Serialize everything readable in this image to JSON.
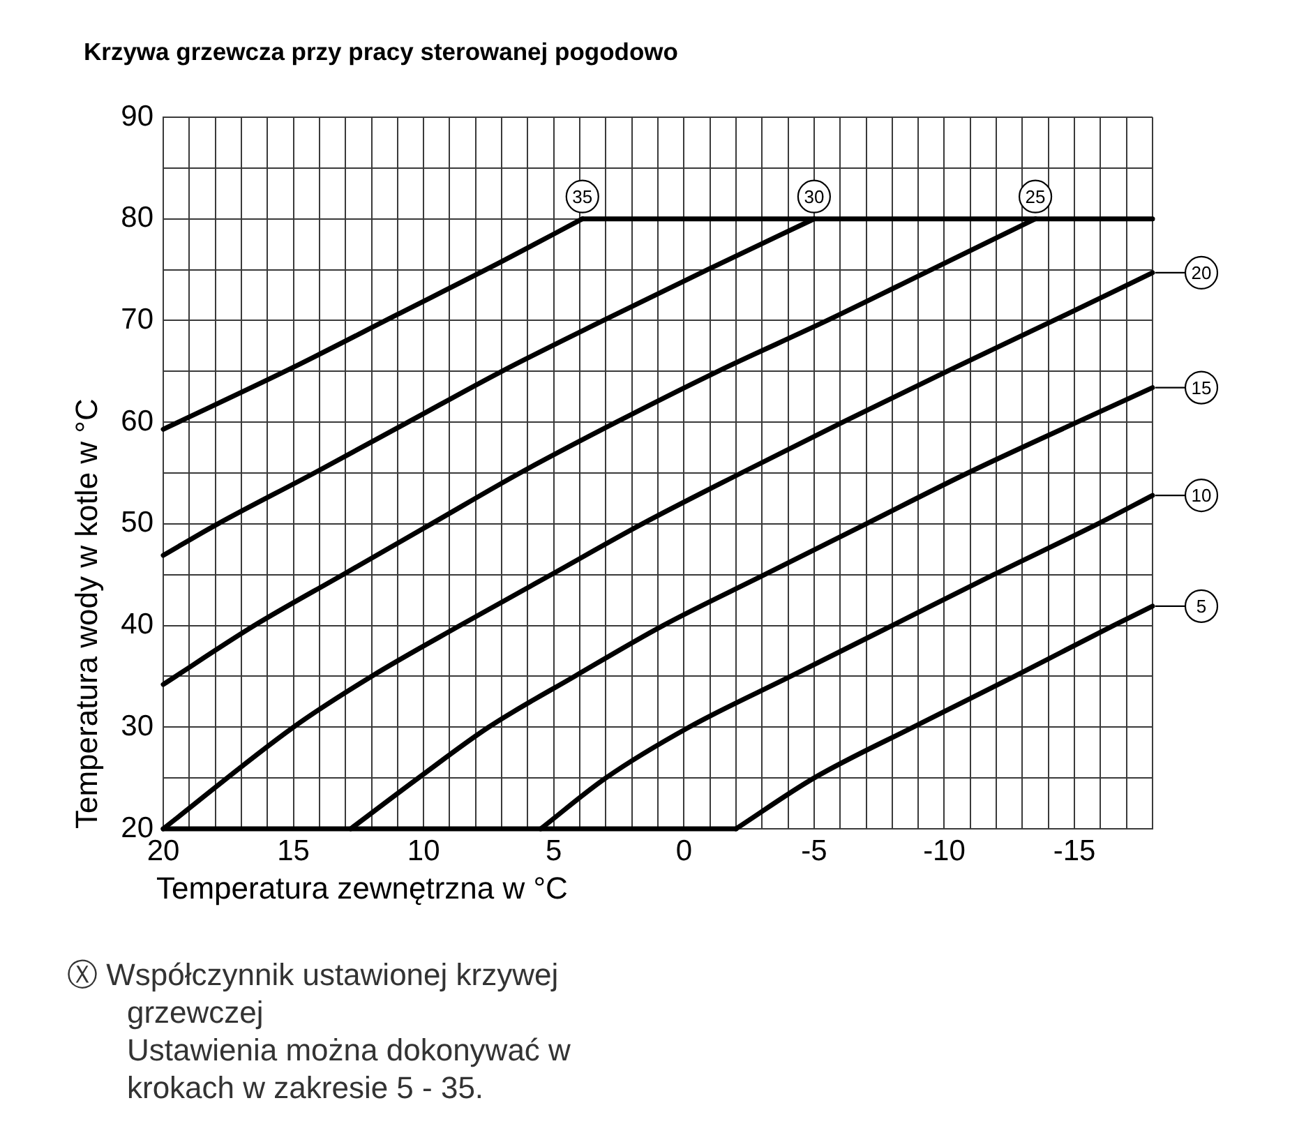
{
  "chart_data": {
    "type": "line",
    "title": "Krzywa grzewcza przy pracy sterowanej pogodowo",
    "xlabel": "Temperatura zewnętrzna w °C",
    "ylabel": "Temperatura wody w kotle w °C",
    "annotations": [
      "Ⓧ Współczynnik ustawionej krzywej grzewczej",
      "Ustawienia można dokonywać w krokach w zakresie 5 - 35."
    ],
    "xlim": [
      20,
      -18
    ],
    "xticks": [
      20,
      {
        "value": 19,
        "label": null
      },
      {
        "value": 18,
        "label": null
      },
      {
        "value": 17,
        "label": null
      },
      {
        "value": 16,
        "label": null
      },
      15,
      {
        "value": 14,
        "label": null
      },
      {
        "value": 13,
        "label": null
      },
      {
        "value": 12,
        "label": null
      },
      {
        "value": 11,
        "label": null
      },
      10,
      {
        "value": 9,
        "label": null
      },
      {
        "value": 8,
        "label": null
      },
      {
        "value": 7,
        "label": null
      },
      {
        "value": 6,
        "label": null
      },
      5,
      {
        "value": 4,
        "label": null
      },
      {
        "value": 3,
        "label": null
      },
      {
        "value": 2,
        "label": null
      },
      {
        "value": 1,
        "label": null
      },
      0,
      {
        "value": -1,
        "label": null
      },
      {
        "value": -2,
        "label": null
      },
      {
        "value": -3,
        "label": null
      },
      {
        "value": -4,
        "label": null
      },
      -5,
      {
        "value": -6,
        "label": null
      },
      {
        "value": -7,
        "label": null
      },
      {
        "value": -8,
        "label": null
      },
      {
        "value": -9,
        "label": null
      },
      -10,
      {
        "value": -11,
        "label": null
      },
      {
        "value": -12,
        "label": null
      },
      {
        "value": -13,
        "label": null
      },
      {
        "value": -14,
        "label": null
      },
      -15,
      {
        "value": -16,
        "label": null
      },
      {
        "value": -17,
        "label": null
      },
      {
        "value": -18,
        "label": null
      }
    ],
    "ylim": [
      20,
      90
    ],
    "yticks": [
      20,
      {
        "value": 25,
        "label": null
      },
      30,
      {
        "value": 35,
        "label": null
      },
      40,
      {
        "value": 45,
        "label": null
      },
      50,
      {
        "value": 55,
        "label": null
      },
      60,
      {
        "value": 65,
        "label": null
      },
      70,
      {
        "value": 75,
        "label": null
      },
      80,
      {
        "value": 85,
        "label": null
      },
      90
    ],
    "grid": true,
    "legend": "right",
    "series": [
      {
        "name": "35",
        "color": "#000000",
        "x": [
          20,
          15,
          11,
          7,
          3.9
        ],
        "values": [
          59.3,
          65.4,
          70.6,
          75.8,
          80
        ]
      },
      {
        "name": "30",
        "color": "#000000",
        "x": [
          20,
          17.9,
          14.2,
          10.6,
          7,
          3.1,
          -0.9,
          -5
        ],
        "values": [
          46.9,
          50,
          55,
          60,
          65,
          70,
          75,
          80
        ]
      },
      {
        "name": "25",
        "color": "#000000",
        "x": [
          20,
          16.5,
          13.1,
          9.7,
          6.3,
          2.6,
          -1.3,
          -5.5,
          -9.5,
          -13.5
        ],
        "values": [
          34.2,
          40,
          45,
          50,
          55,
          60,
          65,
          70,
          75,
          80
        ]
      },
      {
        "name": "20",
        "color": "#000000",
        "x": [
          20,
          15,
          12,
          8.6,
          5.1,
          1.6,
          -2.2,
          -6.1,
          -10.1,
          -14.2,
          -18
        ],
        "values": [
          20,
          30,
          35,
          40,
          45,
          50,
          55,
          60,
          65,
          70,
          74.7
        ]
      },
      {
        "name": "15",
        "color": "#000000",
        "x": [
          12.8,
          10.2,
          7.5,
          4.2,
          0.8,
          -3.1,
          -7,
          -10.9,
          -15.1,
          -18
        ],
        "values": [
          20,
          25,
          30,
          35,
          40,
          45,
          50,
          55,
          60,
          63.4
        ]
      },
      {
        "name": "10",
        "color": "#000000",
        "x": [
          5.5,
          3,
          -0.2,
          -4.1,
          -8,
          -11.9,
          -15.9,
          -18
        ],
        "values": [
          20,
          25,
          30,
          35,
          40,
          45,
          50,
          52.8
        ]
      },
      {
        "name": "5",
        "color": "#000000",
        "x": [
          -2,
          -5,
          -8.8,
          -12.7,
          -16.5,
          -18
        ],
        "values": [
          20,
          25,
          30,
          35,
          40,
          41.9
        ]
      },
      {
        "color": "#000000",
        "x": [
          3.9,
          -18
        ],
        "values": [
          80,
          80
        ]
      },
      {
        "color": "#000000",
        "x": [
          20,
          -2
        ],
        "values": [
          20,
          20
        ]
      }
    ]
  }
}
